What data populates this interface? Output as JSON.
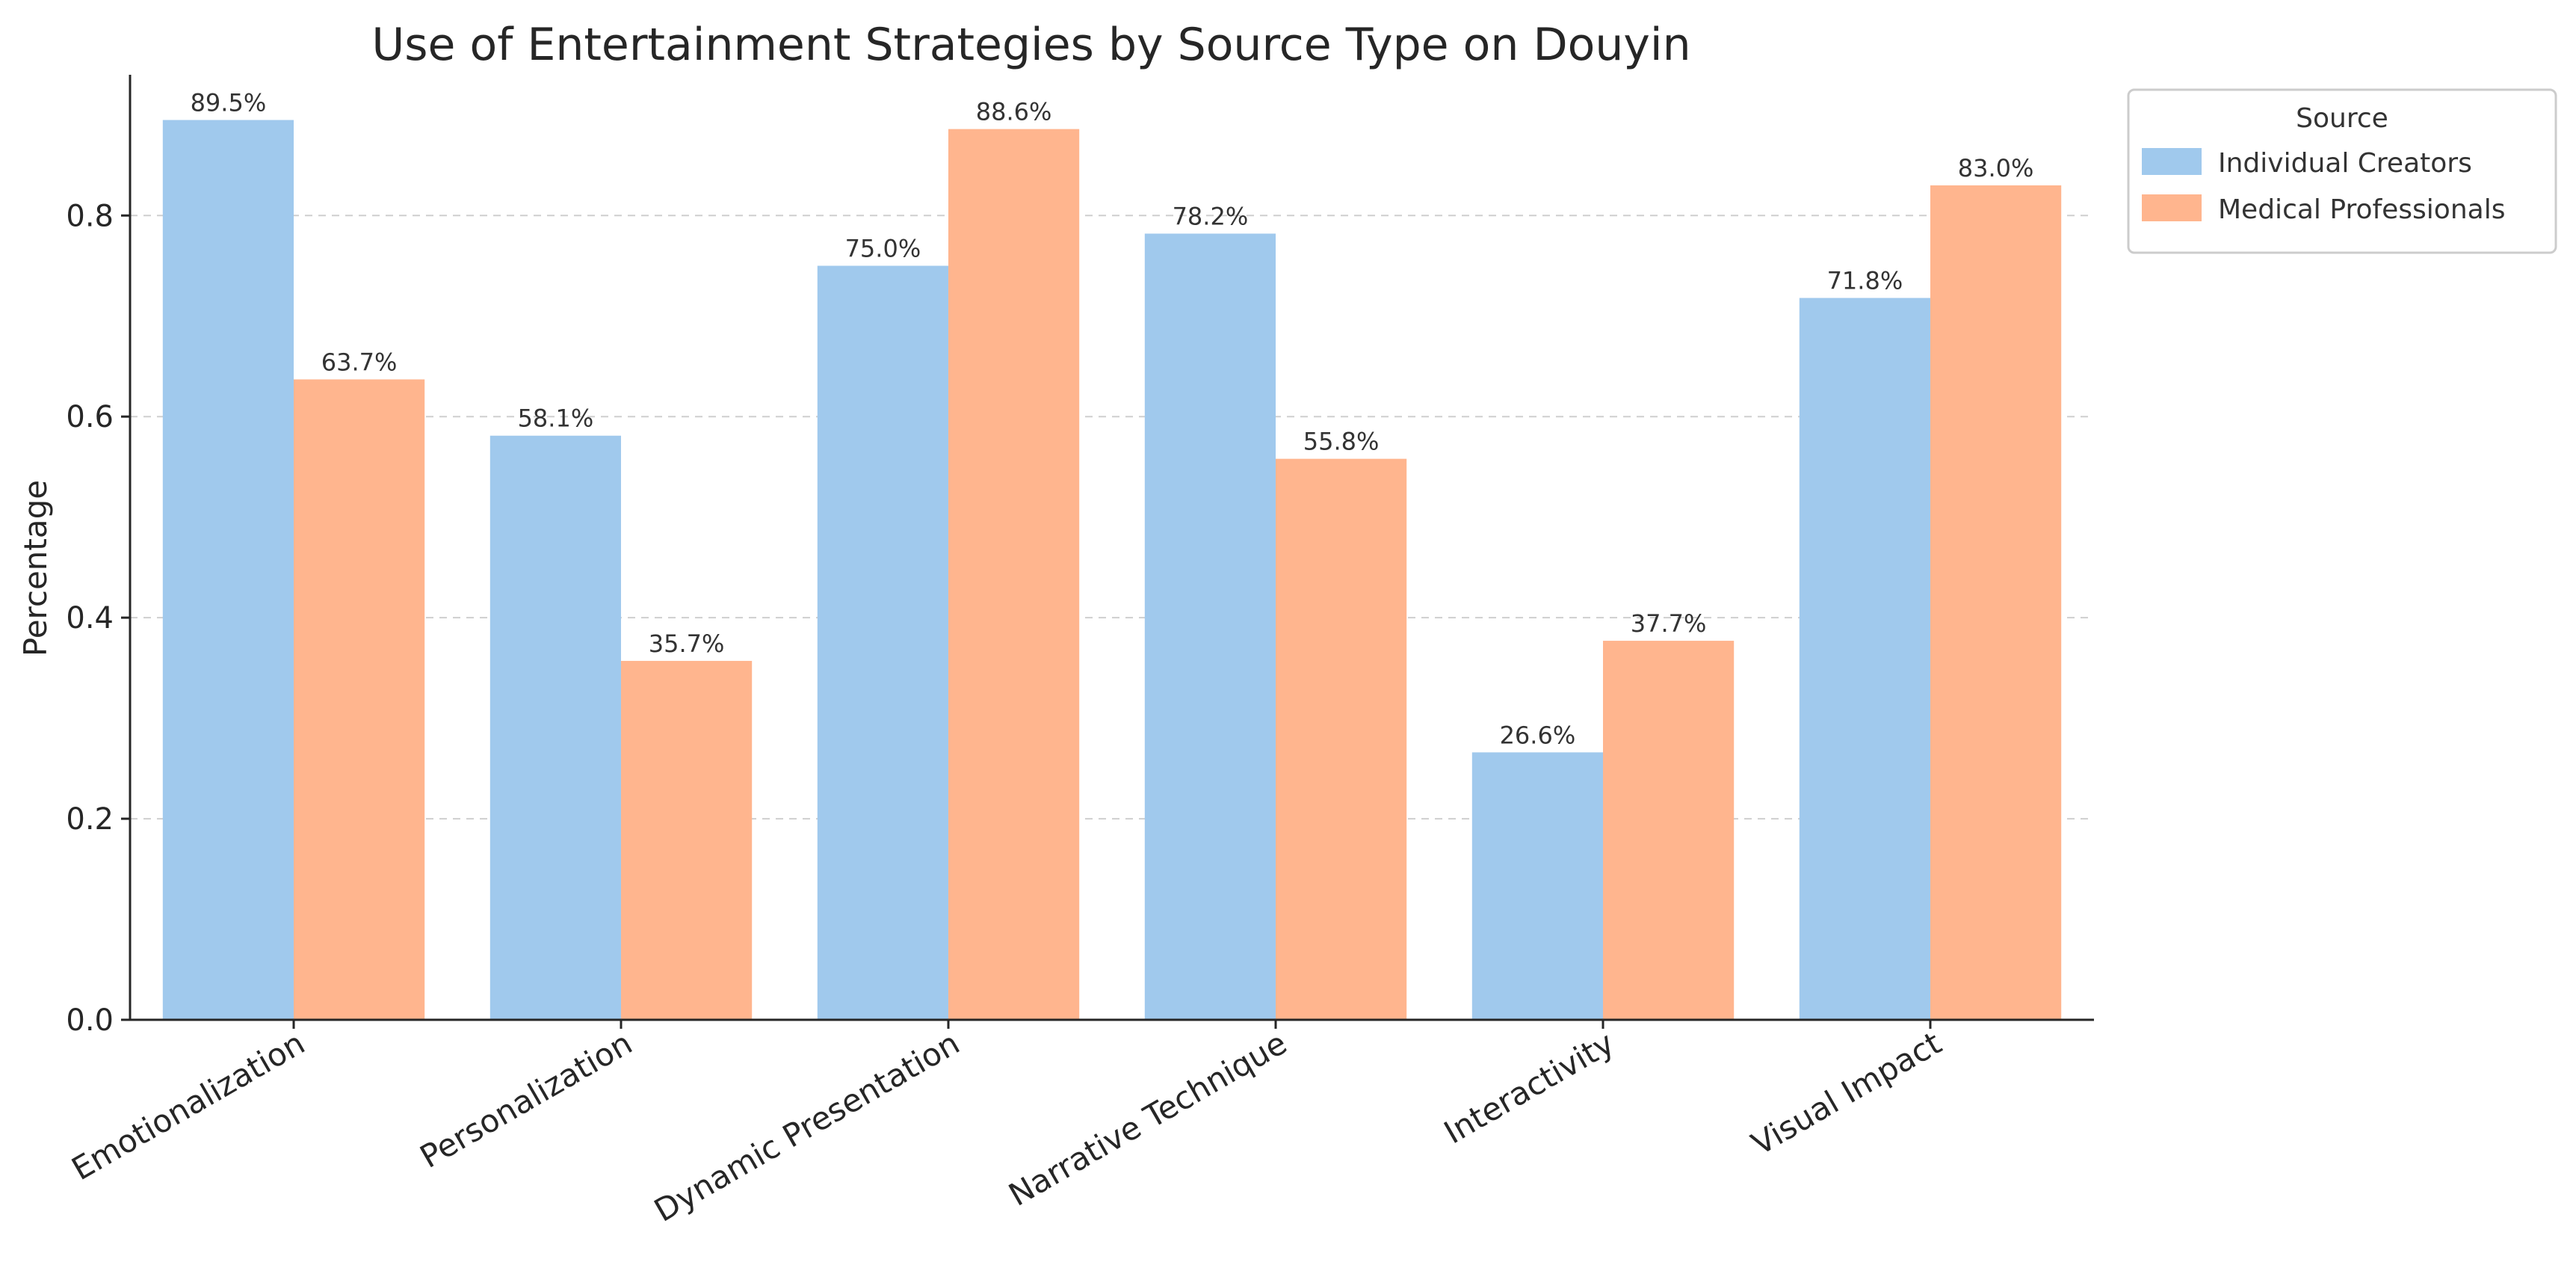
{
  "chart_data": {
    "type": "bar",
    "title": "Use of Entertainment Strategies by Source Type on Douyin",
    "xlabel": "",
    "ylabel": "Percentage",
    "categories": [
      "Emotionalization",
      "Personalization",
      "Dynamic Presentation",
      "Narrative Technique",
      "Interactivity",
      "Visual Impact"
    ],
    "series": [
      {
        "name": "Individual Creators",
        "color": "#a0c9ed",
        "values": [
          0.895,
          0.581,
          0.75,
          0.782,
          0.266,
          0.718
        ],
        "labels": [
          "89.5%",
          "58.1%",
          "75.0%",
          "78.2%",
          "26.6%",
          "71.8%"
        ]
      },
      {
        "name": "Medical Professionals",
        "color": "#ffb58e",
        "values": [
          0.637,
          0.357,
          0.886,
          0.558,
          0.377,
          0.83
        ],
        "labels": [
          "63.7%",
          "35.7%",
          "88.6%",
          "55.8%",
          "37.7%",
          "83.0%"
        ]
      }
    ],
    "ylim": [
      0,
      0.94
    ],
    "yticks": [
      0.0,
      0.2,
      0.4,
      0.6,
      0.8
    ],
    "ytick_labels": [
      "0.0",
      "0.2",
      "0.4",
      "0.6",
      "0.8"
    ],
    "grid": "y-dashed",
    "legend": {
      "title": "Source",
      "placement": "outside-top-right"
    }
  }
}
